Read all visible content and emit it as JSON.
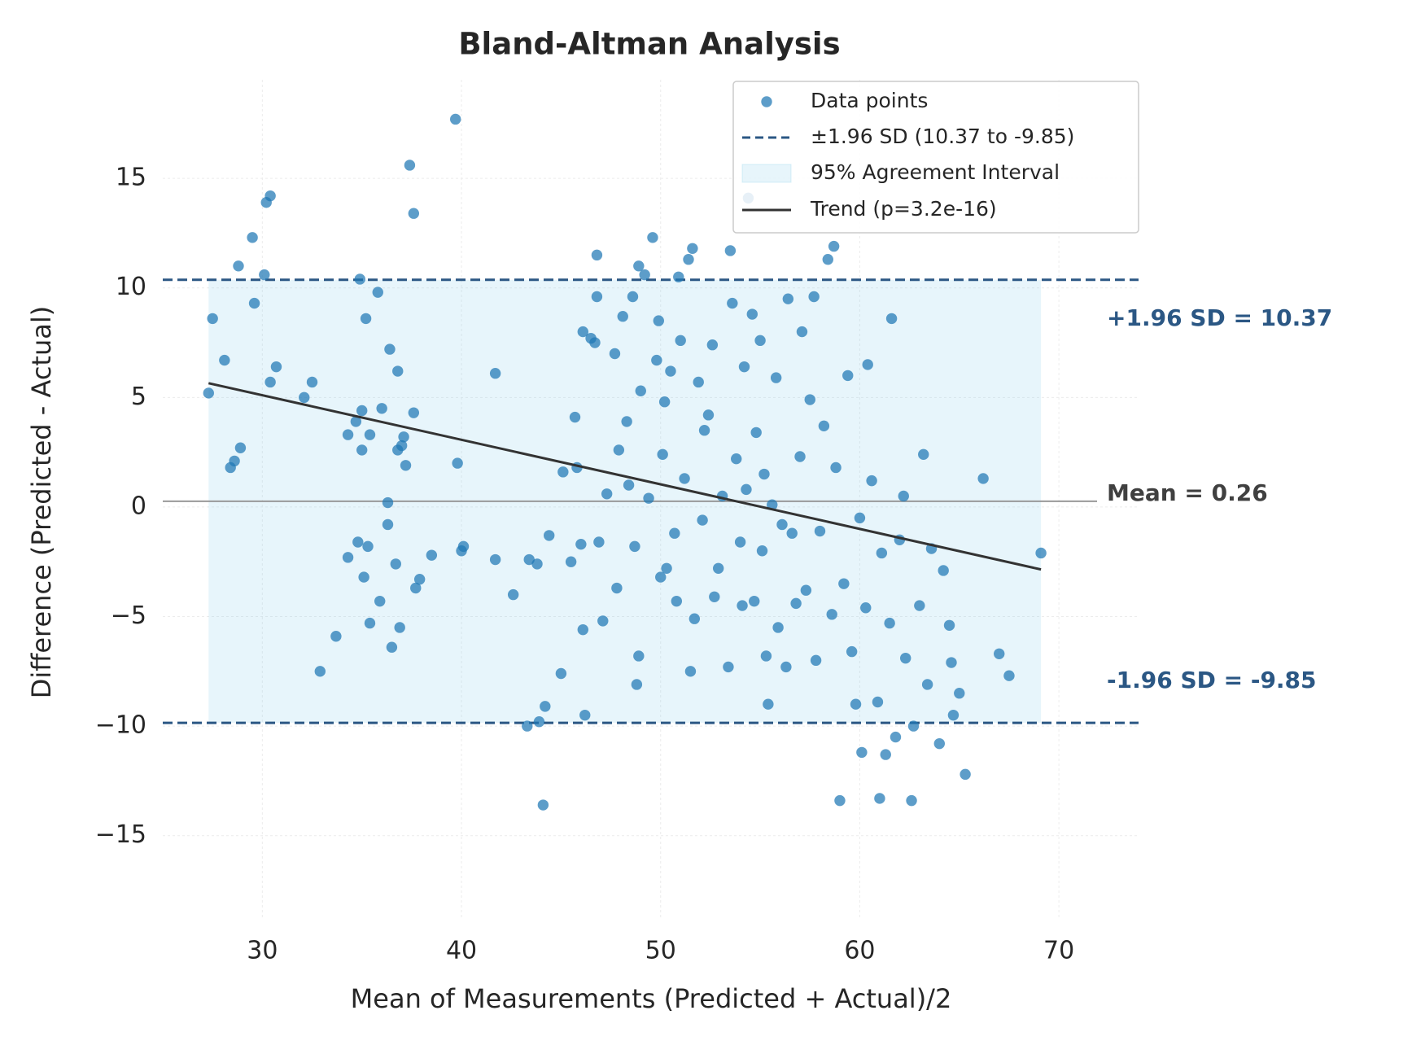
{
  "chart_data": {
    "type": "scatter",
    "title": "Bland-Altman Analysis",
    "xlabel": "Mean of Measurements (Predicted + Actual)/2",
    "ylabel": "Difference (Predicted - Actual)",
    "xlim": [
      25,
      74
    ],
    "ylim": [
      -18.8,
      19.5
    ],
    "xticks": [
      30,
      40,
      50,
      60,
      70
    ],
    "yticks": [
      {
        "value": -15,
        "label": "−15"
      },
      {
        "value": -10,
        "label": "−10"
      },
      {
        "value": -5,
        "label": "−5"
      },
      0,
      5,
      10,
      15
    ],
    "grid": true,
    "legend": "upper right",
    "series": [
      {
        "name": "Data points",
        "color": "#1f77b4",
        "x": [
          27.3,
          27.5,
          28.1,
          28.4,
          28.6,
          28.8,
          28.9,
          29.5,
          29.6,
          30.1,
          30.2,
          30.4,
          30.4,
          30.7,
          32.1,
          32.5,
          32.9,
          33.7,
          34.3,
          34.3,
          34.7,
          34.8,
          34.9,
          35.0,
          35.0,
          35.1,
          35.2,
          35.3,
          35.4,
          35.4,
          35.8,
          35.9,
          36.0,
          36.3,
          36.3,
          36.4,
          36.5,
          36.7,
          36.8,
          36.8,
          36.9,
          37.0,
          37.1,
          37.2,
          37.4,
          37.6,
          37.6,
          37.7,
          37.9,
          38.5,
          39.7,
          39.8,
          40.0,
          40.1,
          41.7,
          41.7,
          42.6,
          43.3,
          43.4,
          43.8,
          43.9,
          44.1,
          44.2,
          44.4,
          45.0,
          45.1,
          45.5,
          45.7,
          45.8,
          46.0,
          46.1,
          46.1,
          46.2,
          46.5,
          46.7,
          46.8,
          46.8,
          46.9,
          47.1,
          47.3,
          47.7,
          47.8,
          47.9,
          48.1,
          48.3,
          48.4,
          48.6,
          48.7,
          48.8,
          48.9,
          48.9,
          49.0,
          49.2,
          49.4,
          49.6,
          49.8,
          49.9,
          50.0,
          50.1,
          50.2,
          50.3,
          50.5,
          50.7,
          50.8,
          50.9,
          51.0,
          51.2,
          51.4,
          51.5,
          51.6,
          51.7,
          51.9,
          52.1,
          52.2,
          52.4,
          52.6,
          52.7,
          52.9,
          53.1,
          53.4,
          53.5,
          53.6,
          53.8,
          54.0,
          54.1,
          54.2,
          54.3,
          54.4,
          54.6,
          54.7,
          54.8,
          55.0,
          55.1,
          55.2,
          55.3,
          55.4,
          55.6,
          55.8,
          55.9,
          56.1,
          56.3,
          56.4,
          56.6,
          56.8,
          57.0,
          57.1,
          57.3,
          57.5,
          57.7,
          57.8,
          58.0,
          58.2,
          58.4,
          58.6,
          58.7,
          58.8,
          59.0,
          59.2,
          59.4,
          59.6,
          59.8,
          60.0,
          60.1,
          60.3,
          60.4,
          60.6,
          60.9,
          61.0,
          61.1,
          61.3,
          61.5,
          61.6,
          61.8,
          62.0,
          62.2,
          62.3,
          62.6,
          62.7,
          63.0,
          63.2,
          63.4,
          63.6,
          64.0,
          64.2,
          64.5,
          64.6,
          64.7,
          65.0,
          65.3,
          66.2,
          67.0,
          67.5,
          69.1
        ],
        "values": [
          5.2,
          8.6,
          6.7,
          1.8,
          2.1,
          11.0,
          2.7,
          12.3,
          9.3,
          10.6,
          13.9,
          14.2,
          5.7,
          6.4,
          5.0,
          5.7,
          -7.5,
          -5.9,
          3.3,
          -2.3,
          3.9,
          -1.6,
          10.4,
          4.4,
          2.6,
          -3.2,
          8.6,
          -1.8,
          3.3,
          -5.3,
          9.8,
          -4.3,
          4.5,
          0.2,
          -0.8,
          7.2,
          -6.4,
          -2.6,
          6.2,
          2.6,
          -5.5,
          2.8,
          3.2,
          1.9,
          15.6,
          13.4,
          4.3,
          -3.7,
          -3.3,
          -2.2,
          17.7,
          2.0,
          -2.0,
          -1.8,
          6.1,
          -2.4,
          -4.0,
          -10.0,
          -2.4,
          -2.6,
          -9.8,
          -13.6,
          -9.1,
          -1.3,
          -7.6,
          1.6,
          -2.5,
          4.1,
          1.8,
          -1.7,
          8.0,
          -5.6,
          -9.5,
          7.7,
          7.5,
          11.5,
          9.6,
          -1.6,
          -5.2,
          0.6,
          7.0,
          -3.7,
          2.6,
          8.7,
          3.9,
          1.0,
          9.6,
          -1.8,
          -8.1,
          11.0,
          -6.8,
          5.3,
          10.6,
          0.4,
          12.3,
          6.7,
          8.5,
          -3.2,
          2.4,
          4.8,
          -2.8,
          6.2,
          -1.2,
          -4.3,
          10.5,
          7.6,
          1.3,
          11.3,
          -7.5,
          11.8,
          -5.1,
          5.7,
          -0.6,
          3.5,
          4.2,
          7.4,
          -4.1,
          -2.8,
          0.5,
          -7.3,
          11.7,
          9.3,
          2.2,
          -1.6,
          -4.5,
          6.4,
          0.8,
          14.1,
          8.8,
          -4.3,
          3.4,
          7.6,
          -2.0,
          1.5,
          -6.8,
          -9.0,
          0.1,
          5.9,
          -5.5,
          -0.8,
          -7.3,
          9.5,
          -1.2,
          -4.4,
          2.3,
          8.0,
          -3.8,
          4.9,
          9.6,
          -7.0,
          -1.1,
          3.7,
          11.3,
          -4.9,
          11.9,
          1.8,
          -13.4,
          -3.5,
          6.0,
          -6.6,
          -9.0,
          -0.5,
          -11.2,
          -4.6,
          6.5,
          1.2,
          -8.9,
          -13.3,
          -2.1,
          -11.3,
          -5.3,
          8.6,
          -10.5,
          -1.5,
          0.5,
          -6.9,
          -13.4,
          -10.0,
          -4.5,
          2.4,
          -8.1,
          -1.9,
          -10.8,
          -2.9,
          -5.4,
          -7.1,
          -9.5,
          -8.5,
          -12.2,
          1.3,
          -6.7,
          -7.7,
          -2.1
        ]
      }
    ],
    "mean": {
      "value": 0.26,
      "label": "Mean = 0.26",
      "color": "#999999"
    },
    "limits": {
      "upper": 10.37,
      "lower": -9.85,
      "name": "±1.96 SD (10.37 to -9.85)",
      "upper_label": "+1.96 SD = 10.37",
      "lower_label": "-1.96 SD = -9.85",
      "color": "#2b5784"
    },
    "band": {
      "name": "95% Agreement Interval",
      "color": "#87ceeb"
    },
    "trend": {
      "name": "Trend (p=3.2e-16)",
      "color": "#333333",
      "x": [
        27.3,
        69.1
      ],
      "values": [
        5.65,
        -2.85
      ]
    }
  }
}
